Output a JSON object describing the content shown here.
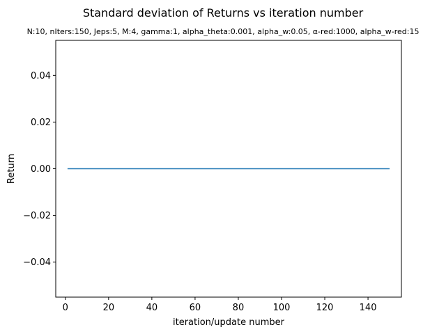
{
  "chart_data": {
    "type": "line",
    "title": "Standard deviation of Returns vs iteration number",
    "subtitle": "N:10, nIters:150, Jeps:5, M:4, gamma:1, alpha_theta:0.001, alpha_w:0.05, α-red:1000, alpha_w-red:15",
    "xlabel": "iteration/update number",
    "ylabel": "Return",
    "xlim": [
      -4.45,
      155.45
    ],
    "ylim": [
      -0.055,
      0.055
    ],
    "x_ticks": [
      0,
      20,
      40,
      60,
      80,
      100,
      120,
      140
    ],
    "y_ticks": [
      -0.04,
      -0.02,
      0.0,
      0.02,
      0.04
    ],
    "x_tick_labels": [
      "0",
      "20",
      "40",
      "60",
      "80",
      "100",
      "120",
      "140"
    ],
    "y_tick_labels": [
      "−0.04",
      "−0.02",
      "0.00",
      "0.02",
      "0.04"
    ],
    "grid": false,
    "series": [
      {
        "color": "#1f77b4",
        "x": [
          1,
          150
        ],
        "y": [
          0,
          0
        ]
      }
    ]
  }
}
